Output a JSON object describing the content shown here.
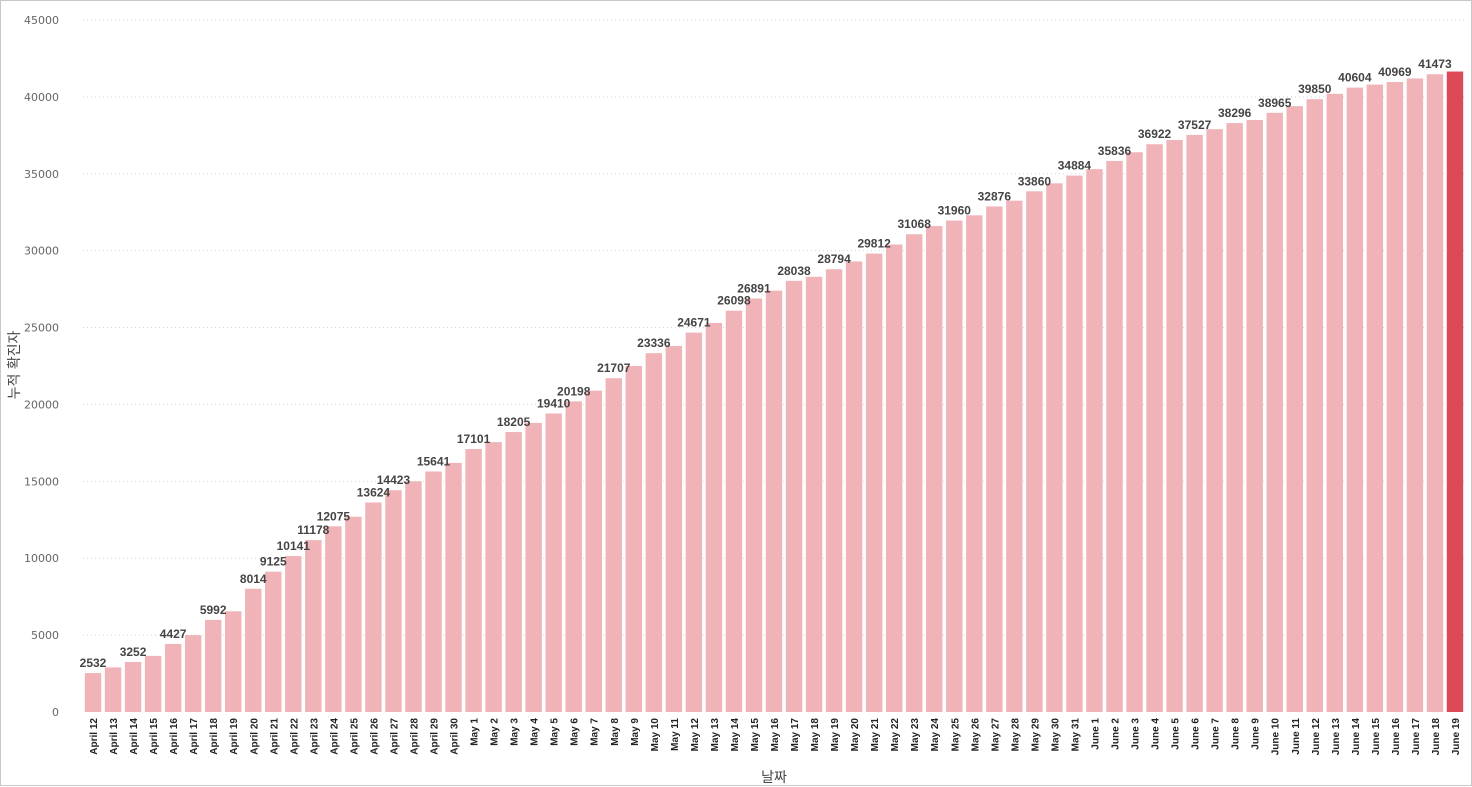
{
  "chart_data": {
    "type": "bar",
    "xlabel": "날짜",
    "ylabel": "누적 확진자",
    "ylim": [
      0,
      45000
    ],
    "yticks": [
      0,
      5000,
      10000,
      15000,
      20000,
      25000,
      30000,
      35000,
      40000,
      45000
    ],
    "grid": true,
    "colors": {
      "bar": "#f0b4b8",
      "highlight": "#dc4a58"
    },
    "highlight_last": true,
    "categories": [
      "April 12",
      "April 13",
      "April 14",
      "April 15",
      "April 16",
      "April 17",
      "April 18",
      "April 19",
      "April 20",
      "April 21",
      "April 22",
      "April 23",
      "April 24",
      "April 25",
      "April 26",
      "April 27",
      "April 28",
      "April 29",
      "April 30",
      "May 1",
      "May 2",
      "May 3",
      "May 4",
      "May 5",
      "May 6",
      "May 7",
      "May 8",
      "May 9",
      "May 10",
      "May 11",
      "May 12",
      "May 13",
      "May 14",
      "May 15",
      "May 16",
      "May 17",
      "May 18",
      "May 19",
      "May 20",
      "May 21",
      "May 22",
      "May 23",
      "May 24",
      "May 25",
      "May 26",
      "May 27",
      "May 28",
      "May 29",
      "May 30",
      "May 31",
      "June 1",
      "June 2",
      "June 3",
      "June 4",
      "June 5",
      "June 6",
      "June 7",
      "June 8",
      "June 9",
      "June 10",
      "June 11",
      "June 12",
      "June 13",
      "June 14",
      "June 15",
      "June 16",
      "June 17",
      "June 18",
      "June 19"
    ],
    "values": [
      2532,
      2900,
      3252,
      3650,
      4427,
      5000,
      5992,
      6550,
      8014,
      9125,
      10141,
      11178,
      12075,
      12700,
      13624,
      14423,
      15000,
      15641,
      16200,
      17101,
      17550,
      18205,
      18800,
      19410,
      20198,
      20900,
      21707,
      22500,
      23336,
      23800,
      24671,
      25300,
      26098,
      26891,
      27400,
      28038,
      28300,
      28794,
      29300,
      29812,
      30400,
      31068,
      31600,
      31960,
      32300,
      32876,
      33250,
      33860,
      34380,
      34884,
      35300,
      35836,
      36400,
      36922,
      37200,
      37527,
      37900,
      38296,
      38500,
      38965,
      39400,
      39850,
      40200,
      40604,
      40800,
      40969,
      41200,
      41473,
      41650
    ],
    "data_labels": [
      {
        "index": 0,
        "text": "2532"
      },
      {
        "index": 2,
        "text": "3252"
      },
      {
        "index": 4,
        "text": "4427"
      },
      {
        "index": 6,
        "text": "5992"
      },
      {
        "index": 8,
        "text": "8014"
      },
      {
        "index": 9,
        "text": "9125"
      },
      {
        "index": 10,
        "text": "10141"
      },
      {
        "index": 11,
        "text": "11178"
      },
      {
        "index": 12,
        "text": "12075"
      },
      {
        "index": 14,
        "text": "13624"
      },
      {
        "index": 15,
        "text": "14423"
      },
      {
        "index": 17,
        "text": "15641"
      },
      {
        "index": 19,
        "text": "17101"
      },
      {
        "index": 21,
        "text": "18205"
      },
      {
        "index": 23,
        "text": "19410"
      },
      {
        "index": 24,
        "text": "20198"
      },
      {
        "index": 26,
        "text": "21707"
      },
      {
        "index": 28,
        "text": "23336"
      },
      {
        "index": 30,
        "text": "24671"
      },
      {
        "index": 32,
        "text": "26098"
      },
      {
        "index": 33,
        "text": "26891"
      },
      {
        "index": 35,
        "text": "28038"
      },
      {
        "index": 37,
        "text": "28794"
      },
      {
        "index": 39,
        "text": "29812"
      },
      {
        "index": 41,
        "text": "31068"
      },
      {
        "index": 43,
        "text": "31960"
      },
      {
        "index": 45,
        "text": "32876"
      },
      {
        "index": 47,
        "text": "33860"
      },
      {
        "index": 49,
        "text": "34884"
      },
      {
        "index": 51,
        "text": "35836"
      },
      {
        "index": 53,
        "text": "36922"
      },
      {
        "index": 55,
        "text": "37527"
      },
      {
        "index": 57,
        "text": "38296"
      },
      {
        "index": 59,
        "text": "38965"
      },
      {
        "index": 61,
        "text": "39850"
      },
      {
        "index": 63,
        "text": "40604"
      },
      {
        "index": 65,
        "text": "40969"
      },
      {
        "index": 67,
        "text": "41473"
      }
    ]
  }
}
